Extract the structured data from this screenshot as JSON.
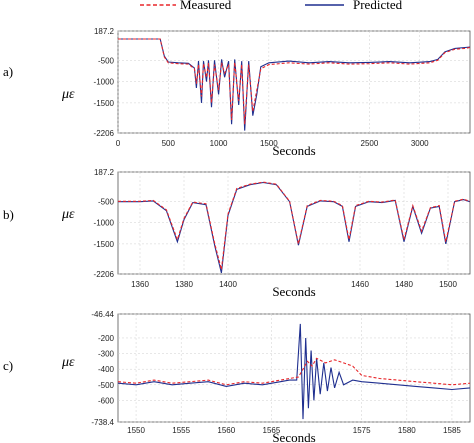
{
  "legend": [
    {
      "label": "Measured",
      "color": "#e8262a",
      "dash": true
    },
    {
      "label": "Predicted",
      "color": "#1f2f8f",
      "dash": false
    }
  ],
  "chart_data": [
    {
      "type": "line",
      "panel_label": "a)",
      "xlabel": "Seconds",
      "ylabel": "με",
      "xlim": [
        0,
        3500
      ],
      "ylim": [
        -2206,
        187.2
      ],
      "xticks": [
        0,
        500,
        1000,
        1500,
        2500,
        3000
      ],
      "ytick_labels": [
        "187.2",
        "-500",
        "-1000",
        "-1500",
        "-2206"
      ],
      "ytick_values": [
        187.2,
        -500,
        -1000,
        -1500,
        -2206
      ],
      "grid": true,
      "series": [
        {
          "name": "Measured",
          "x": [
            0,
            100,
            200,
            300,
            420,
            460,
            500,
            600,
            700,
            760,
            780,
            800,
            830,
            850,
            880,
            900,
            930,
            960,
            1000,
            1030,
            1060,
            1100,
            1130,
            1160,
            1200,
            1230,
            1260,
            1300,
            1340,
            1380,
            1420,
            1500,
            1700,
            1900,
            2100,
            2300,
            2500,
            2700,
            2900,
            3100,
            3180,
            3250,
            3350,
            3450,
            3500
          ],
          "y": [
            0,
            0,
            0,
            0,
            0,
            -420,
            -560,
            -580,
            -590,
            -700,
            -1050,
            -600,
            -1350,
            -580,
            -900,
            -560,
            -1500,
            -600,
            -1200,
            -560,
            -800,
            -600,
            -1900,
            -550,
            -1450,
            -600,
            -2000,
            -600,
            -1700,
            -1200,
            -700,
            -600,
            -560,
            -590,
            -560,
            -590,
            -580,
            -560,
            -590,
            -560,
            -500,
            -320,
            -240,
            -220,
            -200
          ]
        },
        {
          "name": "Predicted",
          "x": [
            0,
            100,
            200,
            300,
            420,
            460,
            500,
            600,
            700,
            760,
            780,
            800,
            830,
            850,
            880,
            900,
            930,
            960,
            1000,
            1030,
            1060,
            1100,
            1130,
            1160,
            1200,
            1230,
            1260,
            1300,
            1340,
            1380,
            1420,
            1500,
            1700,
            1900,
            2100,
            2300,
            2500,
            2700,
            2900,
            3100,
            3180,
            3250,
            3350,
            3450,
            3500
          ],
          "y": [
            0,
            0,
            0,
            0,
            0,
            -400,
            -540,
            -560,
            -570,
            -680,
            -1150,
            -520,
            -1500,
            -520,
            -1000,
            -500,
            -1600,
            -500,
            -1300,
            -480,
            -900,
            -520,
            -2000,
            -480,
            -1550,
            -520,
            -2150,
            -520,
            -1800,
            -1300,
            -650,
            -560,
            -520,
            -560,
            -530,
            -560,
            -550,
            -530,
            -560,
            -530,
            -480,
            -300,
            -220,
            -200,
            -190
          ]
        }
      ]
    },
    {
      "type": "line",
      "panel_label": "b)",
      "xlabel": "Seconds",
      "ylabel": "με",
      "xlim": [
        1350,
        1510
      ],
      "ylim": [
        -2206,
        187.2
      ],
      "xticks": [
        1360,
        1380,
        1400,
        1460,
        1480,
        1500
      ],
      "ytick_labels": [
        "187.2",
        "-500",
        "-1000",
        "-1500",
        "-2206"
      ],
      "ytick_values": [
        187.2,
        -500,
        -1000,
        -1500,
        -2206
      ],
      "grid": true,
      "series": [
        {
          "name": "Measured",
          "x": [
            1350,
            1360,
            1366,
            1372,
            1377,
            1380,
            1384,
            1390,
            1394,
            1397,
            1400,
            1404,
            1410,
            1416,
            1422,
            1428,
            1432,
            1436,
            1442,
            1448,
            1452,
            1455,
            1458,
            1464,
            1470,
            1476,
            1480,
            1484,
            1488,
            1492,
            1496,
            1499,
            1503,
            1507,
            1510
          ],
          "y": [
            -500,
            -500,
            -480,
            -700,
            -1400,
            -900,
            -520,
            -560,
            -1500,
            -2100,
            -800,
            -200,
            -100,
            -50,
            -100,
            -500,
            -1500,
            -600,
            -480,
            -500,
            -600,
            -1400,
            -600,
            -500,
            -520,
            -470,
            -1400,
            -600,
            -1200,
            -650,
            -600,
            -1450,
            -500,
            -450,
            -500
          ]
        },
        {
          "name": "Predicted",
          "x": [
            1350,
            1360,
            1366,
            1372,
            1377,
            1380,
            1384,
            1390,
            1394,
            1397,
            1400,
            1404,
            1410,
            1416,
            1422,
            1428,
            1432,
            1436,
            1442,
            1448,
            1452,
            1455,
            1458,
            1464,
            1470,
            1476,
            1480,
            1484,
            1488,
            1492,
            1496,
            1499,
            1503,
            1507,
            1510
          ],
          "y": [
            -510,
            -510,
            -490,
            -720,
            -1450,
            -930,
            -530,
            -580,
            -1550,
            -2180,
            -830,
            -220,
            -110,
            -60,
            -110,
            -510,
            -1530,
            -620,
            -490,
            -510,
            -620,
            -1450,
            -620,
            -510,
            -530,
            -480,
            -1450,
            -620,
            -1250,
            -660,
            -620,
            -1500,
            -510,
            -460,
            -510
          ]
        }
      ]
    },
    {
      "type": "line",
      "panel_label": "c)",
      "xlabel": "Seconds",
      "ylabel": "με",
      "xlim": [
        1548,
        1587
      ],
      "ylim": [
        -738.4,
        -46.44
      ],
      "xticks": [
        1550,
        1555,
        1560,
        1565,
        1575,
        1580,
        1585
      ],
      "ytick_labels": [
        "-46.44",
        "-200",
        "-300",
        "-400",
        "-500",
        "-600",
        "-738.4"
      ],
      "ytick_values": [
        -46.44,
        -200,
        -300,
        -400,
        -500,
        -600,
        -738.4
      ],
      "grid": true,
      "series": [
        {
          "name": "Measured",
          "x": [
            1548,
            1550,
            1552,
            1554,
            1556,
            1558,
            1560,
            1562,
            1564,
            1566,
            1567,
            1568,
            1568.5,
            1569,
            1569.5,
            1570,
            1571,
            1572,
            1573,
            1574,
            1575,
            1577,
            1579,
            1581,
            1583,
            1585,
            1587
          ],
          "y": [
            -480,
            -490,
            -470,
            -490,
            -480,
            -470,
            -500,
            -480,
            -490,
            -470,
            -460,
            -450,
            -400,
            -350,
            -380,
            -330,
            -360,
            -340,
            -360,
            -380,
            -440,
            -460,
            -470,
            -480,
            -490,
            -500,
            -490
          ]
        },
        {
          "name": "Predicted",
          "x": [
            1548,
            1550,
            1552,
            1554,
            1556,
            1558,
            1560,
            1562,
            1564,
            1566,
            1567,
            1567.8,
            1568.2,
            1568.5,
            1568.8,
            1569.1,
            1569.4,
            1569.7,
            1570,
            1570.4,
            1570.8,
            1571.2,
            1571.6,
            1572,
            1572.5,
            1573,
            1574,
            1575,
            1577,
            1579,
            1581,
            1583,
            1585,
            1587
          ],
          "y": [
            -490,
            -500,
            -480,
            -500,
            -490,
            -480,
            -510,
            -490,
            -500,
            -480,
            -470,
            -470,
            -110,
            -720,
            -200,
            -650,
            -280,
            -600,
            -330,
            -560,
            -360,
            -540,
            -390,
            -520,
            -420,
            -500,
            -470,
            -480,
            -490,
            -500,
            -510,
            -520,
            -530,
            -520
          ]
        }
      ]
    }
  ]
}
